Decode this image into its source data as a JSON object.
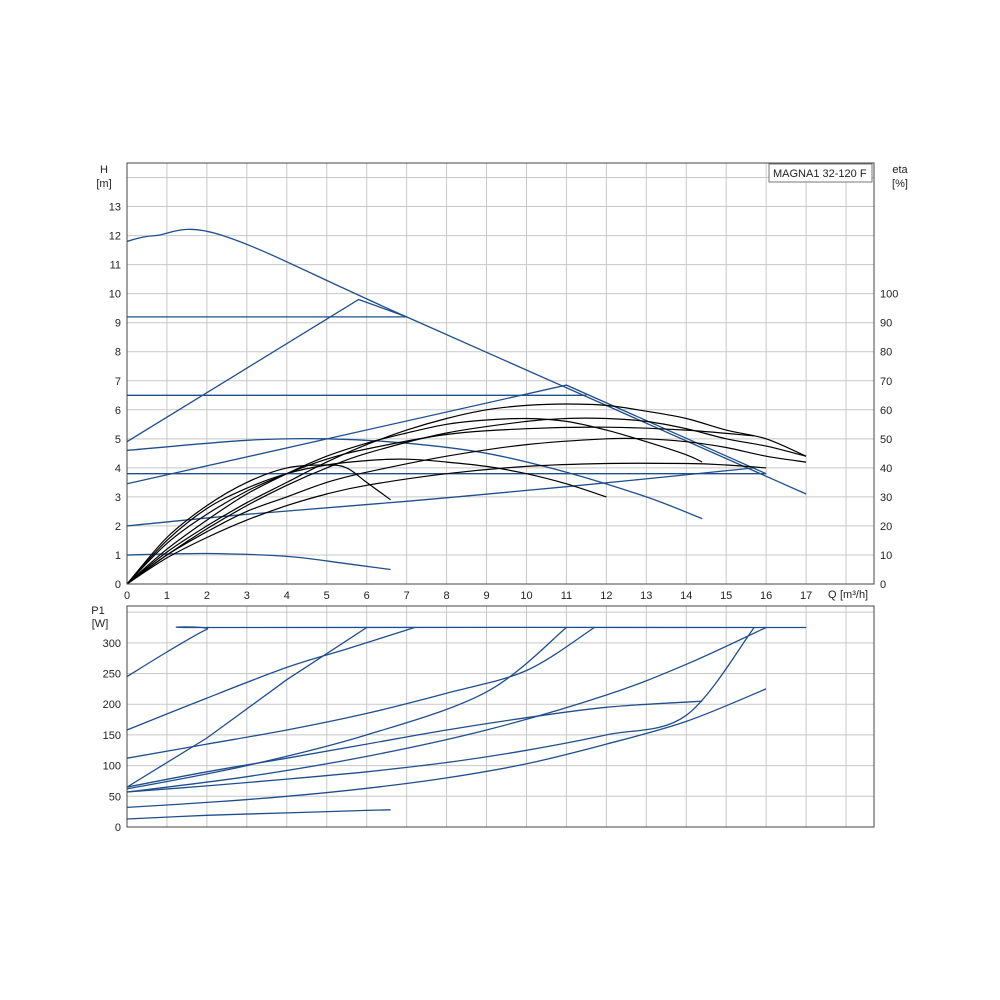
{
  "model_label": "MAGNA1 32-120 F",
  "colors": {
    "pump_curve": "#1f4e8c",
    "efficiency_curve": "#000000",
    "grid": "#c8c8c8"
  },
  "chart_data": [
    {
      "id": "head",
      "type": "line",
      "ylabel": "H",
      "yunit": "[m]",
      "y2label": "eta",
      "y2unit": "[%]",
      "xlabel": "Q",
      "xunit": "[m³/h]",
      "xlim": [
        0,
        18.7
      ],
      "ylim": [
        0,
        14.5
      ],
      "xticks": [
        0,
        1,
        2,
        3,
        4,
        5,
        6,
        7,
        8,
        9,
        10,
        11,
        12,
        13,
        14,
        15,
        16,
        17
      ],
      "yticks": [
        0,
        1,
        2,
        3,
        4,
        5,
        6,
        7,
        8,
        9,
        10,
        11,
        12,
        13
      ],
      "y2ticks": [
        0,
        10,
        20,
        30,
        40,
        50,
        60,
        70,
        80,
        90,
        100
      ],
      "y2lim": [
        0,
        145
      ],
      "grid": true,
      "series": [
        {
          "kind": "head",
          "points": [
            [
              0,
              11.8
            ],
            [
              0.7,
              12.0
            ],
            [
              2.4,
              12.0
            ],
            [
              7.0,
              9.2
            ],
            [
              17.0,
              3.1
            ]
          ]
        },
        {
          "kind": "head",
          "points": [
            [
              0,
              4.9
            ],
            [
              5.8,
              9.8
            ],
            [
              7.0,
              9.2
            ]
          ]
        },
        {
          "kind": "head",
          "points": [
            [
              0,
              9.2
            ],
            [
              7.0,
              9.2
            ]
          ]
        },
        {
          "kind": "head",
          "points": [
            [
              0,
              6.5
            ],
            [
              11.5,
              6.5
            ]
          ]
        },
        {
          "kind": "head",
          "points": [
            [
              0,
              3.45
            ],
            [
              11.0,
              6.85
            ],
            [
              16.0,
              3.8
            ]
          ]
        },
        {
          "kind": "head",
          "points": [
            [
              0,
              3.8
            ],
            [
              16.0,
              3.8
            ]
          ]
        },
        {
          "kind": "head",
          "points": [
            [
              0,
              4.6
            ],
            [
              3,
              4.95
            ],
            [
              5,
              5.0
            ],
            [
              7,
              4.85
            ],
            [
              9,
              4.5
            ],
            [
              11,
              3.85
            ],
            [
              13,
              3.0
            ],
            [
              14.4,
              2.25
            ]
          ]
        },
        {
          "kind": "head",
          "points": [
            [
              0,
              2.0
            ],
            [
              3,
              2.4
            ],
            [
              7,
              2.85
            ],
            [
              11,
              3.35
            ],
            [
              15.7,
              4.0
            ]
          ]
        },
        {
          "kind": "head",
          "points": [
            [
              0,
              1.0
            ],
            [
              2,
              1.05
            ],
            [
              4,
              0.95
            ],
            [
              5.5,
              0.7
            ],
            [
              6.6,
              0.5
            ]
          ]
        },
        {
          "kind": "efficiency",
          "points": [
            [
              0,
              0
            ],
            [
              1,
              9
            ],
            [
              2,
              16
            ],
            [
              3,
              22
            ],
            [
              4,
              27
            ],
            [
              5,
              31
            ],
            [
              6,
              34
            ],
            [
              8,
              38
            ],
            [
              10,
              40.5
            ],
            [
              12,
              41.5
            ],
            [
              14,
              41.5
            ],
            [
              15,
              41
            ],
            [
              16,
              40
            ]
          ]
        },
        {
          "kind": "efficiency",
          "points": [
            [
              0,
              0
            ],
            [
              1,
              10
            ],
            [
              2,
              18
            ],
            [
              3,
              25
            ],
            [
              4,
              30
            ],
            [
              5,
              35
            ],
            [
              6,
              38.5
            ],
            [
              8,
              44
            ],
            [
              10,
              48
            ],
            [
              12,
              50
            ],
            [
              13,
              50
            ],
            [
              14,
              49
            ],
            [
              15,
              47
            ],
            [
              16,
              44
            ],
            [
              17,
              42
            ]
          ]
        },
        {
          "kind": "efficiency",
          "points": [
            [
              0,
              0
            ],
            [
              1,
              10
            ],
            [
              2,
              19
            ],
            [
              3,
              27
            ],
            [
              4,
              34
            ],
            [
              5,
              40
            ],
            [
              6,
              45
            ],
            [
              8,
              52
            ],
            [
              10,
              56
            ],
            [
              11,
              57
            ],
            [
              12,
              57
            ],
            [
              13,
              56
            ],
            [
              14,
              53.5
            ],
            [
              15,
              50
            ],
            [
              16,
              47.5
            ],
            [
              17,
              44
            ]
          ]
        },
        {
          "kind": "efficiency",
          "points": [
            [
              0,
              0
            ],
            [
              1,
              11
            ],
            [
              2,
              20
            ],
            [
              3,
              28
            ],
            [
              4,
              35
            ],
            [
              5,
              42
            ],
            [
              6,
              48
            ],
            [
              7,
              53
            ],
            [
              8,
              57
            ],
            [
              9,
              60
            ],
            [
              10,
              61.5
            ],
            [
              11,
              62
            ],
            [
              12,
              61.5
            ],
            [
              13,
              59.5
            ],
            [
              14,
              57
            ],
            [
              15,
              53
            ],
            [
              16,
              50
            ],
            [
              17,
              44
            ]
          ]
        },
        {
          "kind": "efficiency",
          "points": [
            [
              0,
              0
            ],
            [
              1,
              12
            ],
            [
              2,
              22
            ],
            [
              3,
              31
            ],
            [
              4,
              38
            ],
            [
              5,
              44
            ],
            [
              6,
              48.5
            ],
            [
              7,
              52
            ],
            [
              8,
              55
            ],
            [
              9,
              56.5
            ],
            [
              10,
              57
            ],
            [
              11,
              56
            ],
            [
              12,
              53
            ],
            [
              13,
              49
            ],
            [
              14,
              44.5
            ],
            [
              14.4,
              42
            ]
          ]
        },
        {
          "kind": "efficiency",
          "points": [
            [
              0,
              0
            ],
            [
              1,
              14
            ],
            [
              2,
              24
            ],
            [
              3,
              32
            ],
            [
              4,
              38
            ],
            [
              5,
              43
            ],
            [
              6,
              46.5
            ],
            [
              8,
              51.5
            ],
            [
              10,
              53.5
            ],
            [
              12,
              54
            ],
            [
              14,
              53
            ],
            [
              15.7,
              51
            ]
          ]
        },
        {
          "kind": "efficiency",
          "points": [
            [
              0,
              0
            ],
            [
              1,
              15
            ],
            [
              2,
              26
            ],
            [
              3,
              33
            ],
            [
              4,
              38
            ],
            [
              5,
              41
            ],
            [
              6,
              42.5
            ],
            [
              7,
              43
            ],
            [
              8,
              42
            ],
            [
              9,
              40.5
            ],
            [
              10,
              38
            ],
            [
              11,
              34.5
            ],
            [
              12,
              30
            ]
          ]
        },
        {
          "kind": "efficiency",
          "points": [
            [
              0,
              0
            ],
            [
              1,
              16
            ],
            [
              2,
              27
            ],
            [
              3,
              35
            ],
            [
              4,
              40
            ],
            [
              5,
              41
            ],
            [
              5.5,
              40
            ],
            [
              6,
              35
            ],
            [
              6.6,
              29
            ]
          ]
        }
      ]
    },
    {
      "id": "power",
      "type": "line",
      "ylabel": "P1",
      "yunit": "[W]",
      "xlim": [
        0,
        18.7
      ],
      "ylim": [
        0,
        360
      ],
      "xticks": [
        0,
        1,
        2,
        3,
        4,
        5,
        6,
        7,
        8,
        9,
        10,
        11,
        12,
        13,
        14,
        15,
        16,
        17
      ],
      "yticks": [
        0,
        50,
        100,
        150,
        200,
        250,
        300
      ],
      "grid": true,
      "series": [
        {
          "kind": "power",
          "points": [
            [
              0,
              245
            ],
            [
              1,
              285
            ],
            [
              2,
              322
            ],
            [
              2.4,
              325
            ],
            [
              17.0,
              325
            ]
          ]
        },
        {
          "kind": "power",
          "points": [
            [
              0,
              158
            ],
            [
              2,
              210
            ],
            [
              4,
              260
            ],
            [
              5.5,
              290
            ],
            [
              7.2,
              325
            ]
          ]
        },
        {
          "kind": "power",
          "points": [
            [
              0,
              65
            ],
            [
              2,
              145
            ],
            [
              4,
              240
            ],
            [
              6,
              325
            ]
          ]
        },
        {
          "kind": "power",
          "points": [
            [
              0,
              112
            ],
            [
              2,
              135
            ],
            [
              4,
              158
            ],
            [
              6,
              185
            ],
            [
              8,
              218
            ],
            [
              10,
              255
            ],
            [
              11.7,
              325
            ]
          ]
        },
        {
          "kind": "power",
          "points": [
            [
              0,
              62
            ],
            [
              3,
              100
            ],
            [
              6,
              150
            ],
            [
              9,
              220
            ],
            [
              11,
              325
            ]
          ]
        },
        {
          "kind": "power",
          "points": [
            [
              0,
              57
            ],
            [
              3,
              82
            ],
            [
              6,
              115
            ],
            [
              9,
              158
            ],
            [
              12,
              215
            ],
            [
              14,
              265
            ],
            [
              16,
              325
            ]
          ]
        },
        {
          "kind": "power",
          "points": [
            [
              0,
              57
            ],
            [
              2,
              67
            ],
            [
              4,
              78
            ],
            [
              6,
              90
            ],
            [
              8,
              105
            ],
            [
              10,
              125
            ],
            [
              12,
              150
            ],
            [
              14,
              182
            ],
            [
              15.7,
              325
            ]
          ]
        },
        {
          "kind": "power",
          "points": [
            [
              0,
              65
            ],
            [
              2,
              90
            ],
            [
              4,
              112
            ],
            [
              6,
              135
            ],
            [
              8,
              158
            ],
            [
              10,
              178
            ],
            [
              12,
              195
            ],
            [
              14.4,
              205
            ]
          ]
        },
        {
          "kind": "power",
          "points": [
            [
              0,
              32
            ],
            [
              2,
              40
            ],
            [
              4,
              50
            ],
            [
              6,
              63
            ],
            [
              8,
              80
            ],
            [
              10,
              103
            ],
            [
              12,
              135
            ],
            [
              14,
              172
            ],
            [
              16,
              225
            ]
          ]
        },
        {
          "kind": "power",
          "points": [
            [
              0,
              13
            ],
            [
              2,
              19
            ],
            [
              4,
              23
            ],
            [
              6,
              27
            ],
            [
              6.6,
              28
            ]
          ]
        }
      ]
    }
  ]
}
